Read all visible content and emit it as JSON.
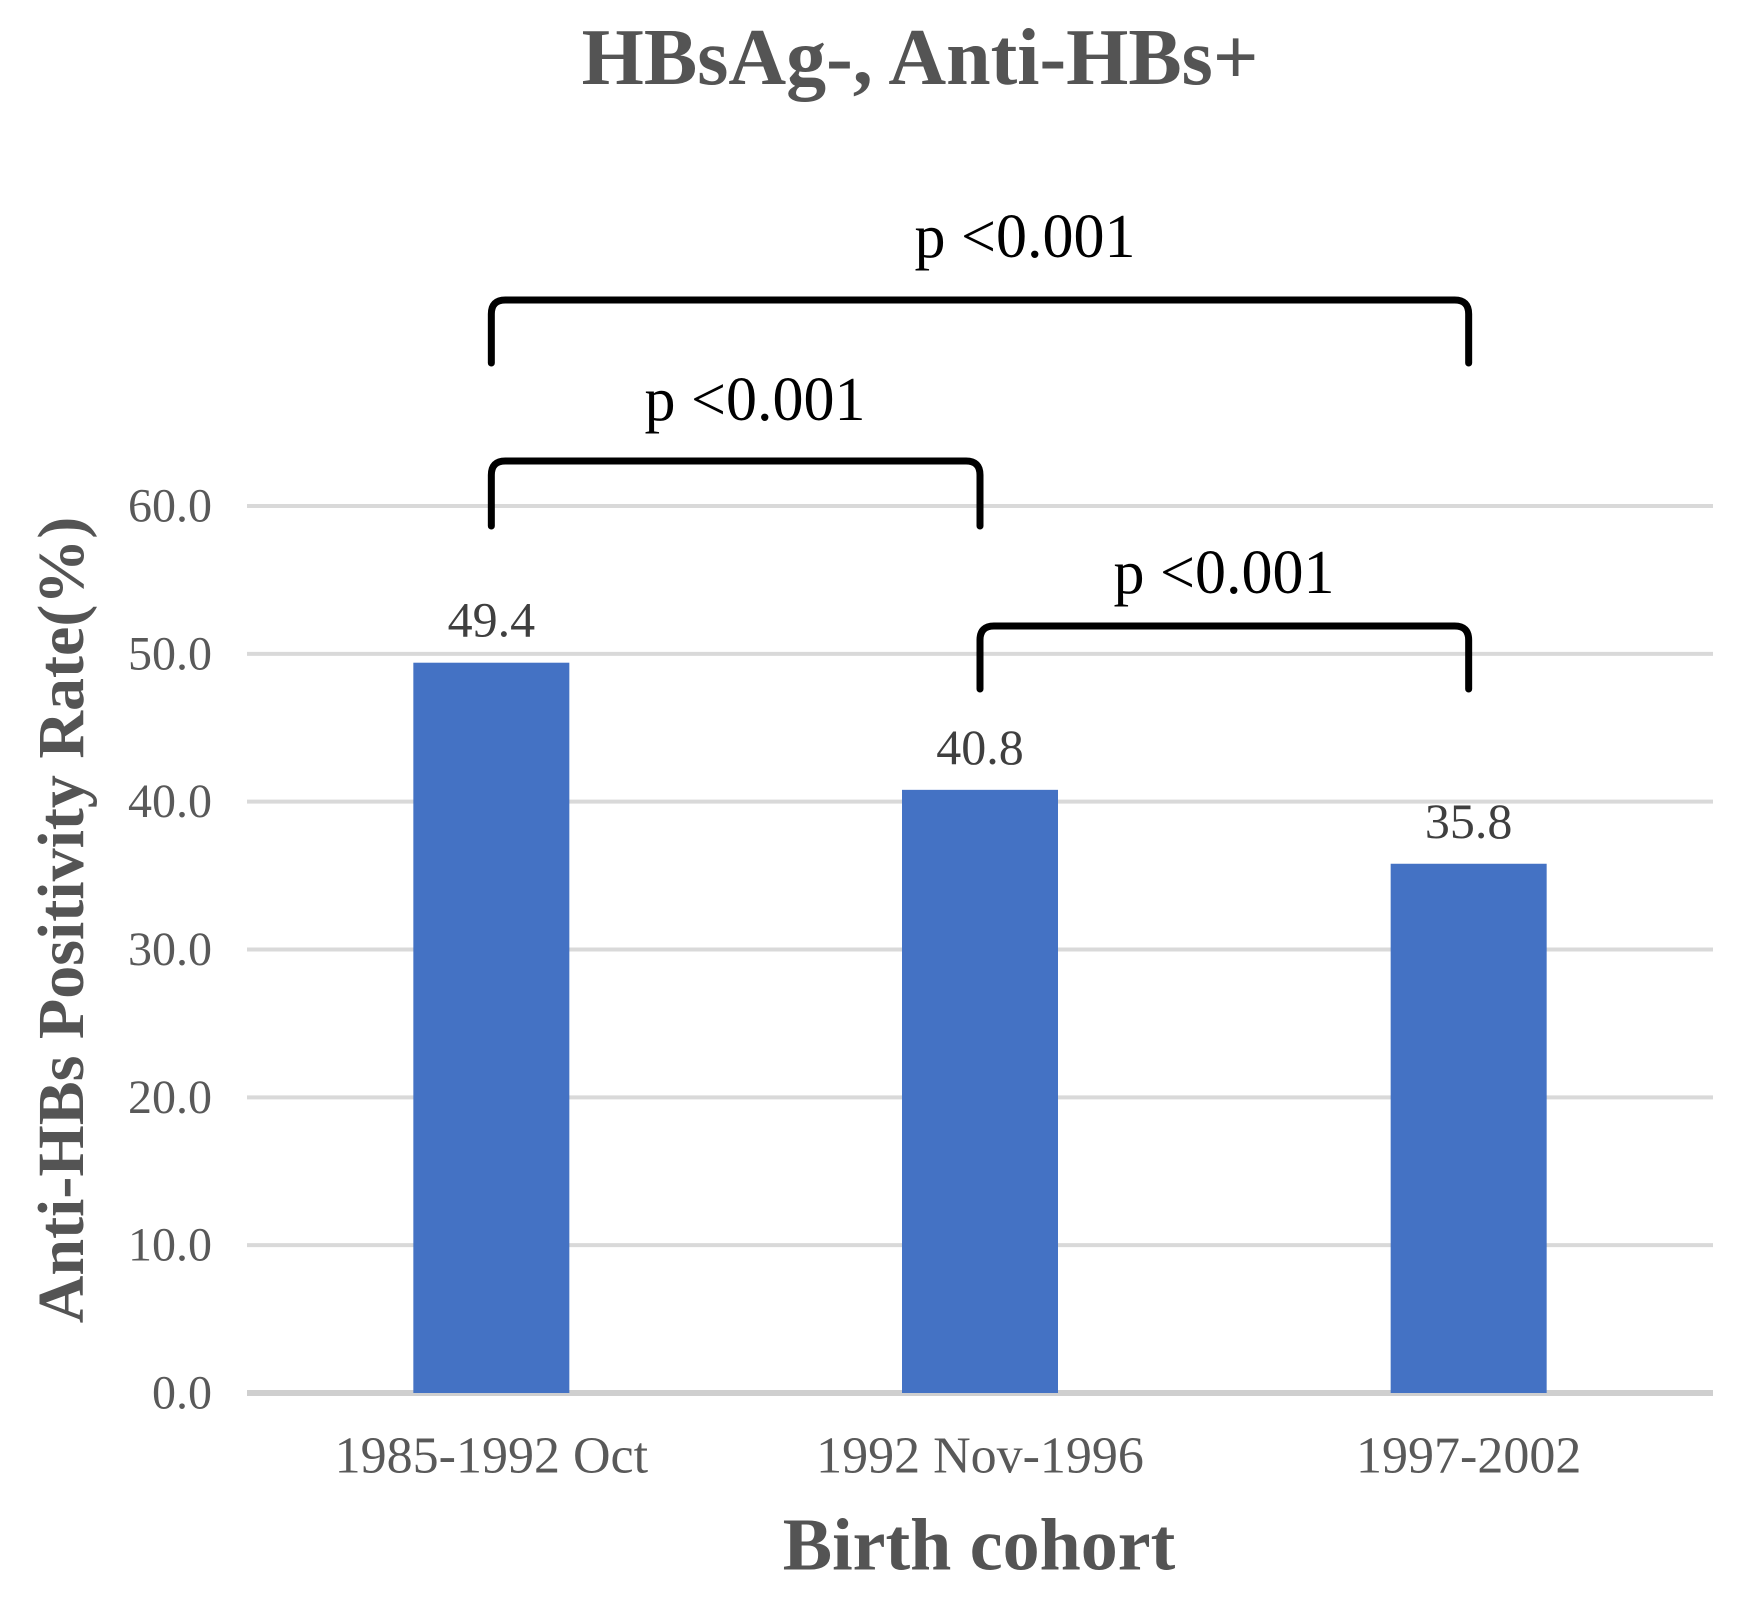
{
  "chart_data": {
    "type": "bar",
    "title": "HBsAg-, Anti-HBs+",
    "xlabel": "Birth cohort",
    "ylabel": "Anti-HBs Positivity Rate(%)",
    "categories": [
      "1985-1992 Oct",
      "1992 Nov-1996",
      "1997-2002"
    ],
    "values": [
      49.4,
      40.8,
      35.8
    ],
    "value_labels": [
      "49.4",
      "40.8",
      "35.8"
    ],
    "ylim": [
      0,
      60
    ],
    "yticks": [
      0,
      10,
      20,
      30,
      40,
      50,
      60
    ],
    "ytick_labels": [
      "0.0",
      "10.0",
      "20.0",
      "30.0",
      "40.0",
      "50.0",
      "60.0"
    ],
    "grid": "horizontal",
    "legend": "none",
    "annotations": [
      {
        "label": "p <0.001",
        "from": 0,
        "to": 2
      },
      {
        "label": "p <0.001",
        "from": 0,
        "to": 1
      },
      {
        "label": "p <0.001",
        "from": 1,
        "to": 2
      }
    ],
    "colors": {
      "bar": "#4472C4",
      "gridline": "#D9D9D9",
      "baseline": "#CFCFCF",
      "title_text": "#545454",
      "tick_text": "#595959",
      "value_text": "#3F3F3F",
      "annotation_text": "#000000",
      "bracket_line": "#000000"
    }
  }
}
